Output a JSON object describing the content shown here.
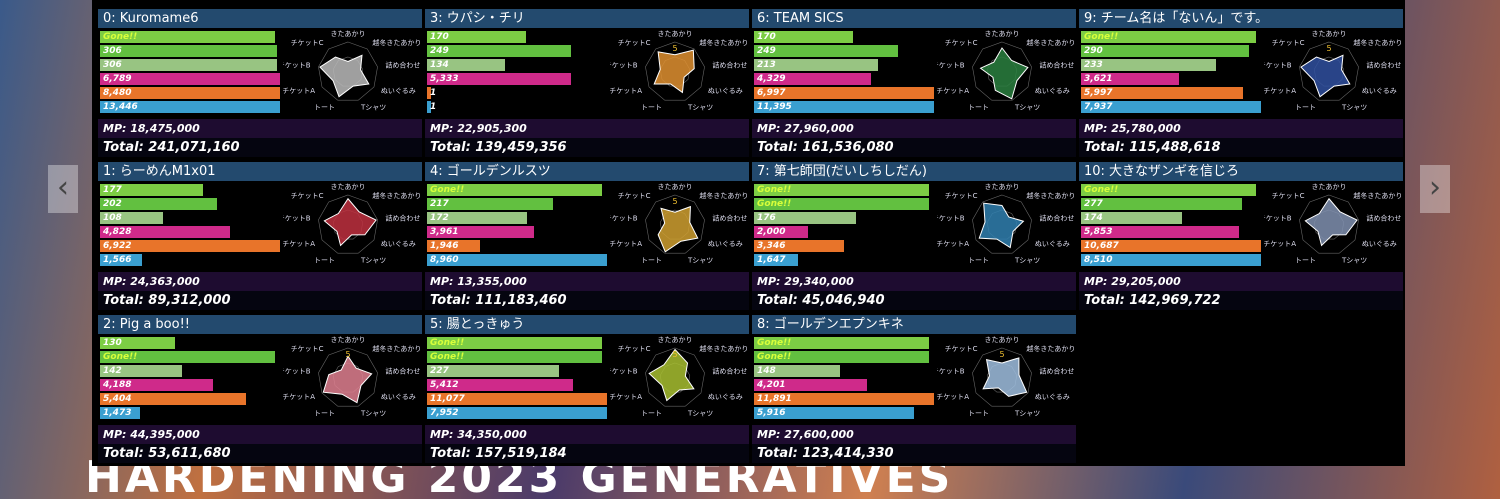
{
  "radar_axes": [
    "きたあかり",
    "越冬きたあかり",
    "詰め合わせ",
    "ぬいぐるみ",
    "Tシャツ",
    "トート",
    "チケットA",
    "チケットB",
    "チケットC"
  ],
  "footer": "HARDENING 2023 GENERATIVES",
  "teams": [
    {
      "title": "0: Kuromame6",
      "bars": [
        "Gone!!",
        "306",
        "306",
        "6,789",
        "8,480",
        "13,446"
      ],
      "mp": "MP: 18,475,000",
      "total": "Total: 241,071,160"
    },
    {
      "title": "1: らーめんM1x01",
      "bars": [
        "177",
        "202",
        "108",
        "4,828",
        "6,922",
        "1,566"
      ],
      "mp": "MP: 24,363,000",
      "total": "Total: 89,312,000"
    },
    {
      "title": "2: Pig a boo!!",
      "bars": [
        "130",
        "Gone!!",
        "142",
        "4,188",
        "5,404",
        "1,473"
      ],
      "mp": "MP: 44,395,000",
      "total": "Total: 53,611,680",
      "radar_mark": "5"
    },
    {
      "title": "3: ウパシ・チリ",
      "bars": [
        "170",
        "249",
        "134",
        "5,333",
        "1",
        "1"
      ],
      "mp": "MP: 22,905,300",
      "total": "Total: 139,459,356",
      "radar_mark": "5"
    },
    {
      "title": "4: ゴールデンルスツ",
      "bars": [
        "Gone!!",
        "217",
        "172",
        "3,961",
        "1,946",
        "8,960"
      ],
      "mp": "MP: 13,355,000",
      "total": "Total: 111,183,460",
      "radar_mark": "5"
    },
    {
      "title": "5: 腸とっきゅう",
      "bars": [
        "Gone!!",
        "Gone!!",
        "227",
        "5,412",
        "11,077",
        "7,952"
      ],
      "mp": "MP: 34,350,000",
      "total": "Total: 157,519,184",
      "radar_mark": "5"
    },
    {
      "title": "6: TEAM SICS",
      "bars": [
        "170",
        "249",
        "213",
        "4,329",
        "6,997",
        "11,395"
      ],
      "mp": "MP: 27,960,000",
      "total": "Total: 161,536,080"
    },
    {
      "title": "7: 第七師団(だいしちしだん)",
      "bars": [
        "Gone!!",
        "Gone!!",
        "176",
        "2,000",
        "3,346",
        "1,647"
      ],
      "mp": "MP: 29,340,000",
      "total": "Total: 45,046,940"
    },
    {
      "title": "8: ゴールデンエプンキネ",
      "bars": [
        "Gone!!",
        "Gone!!",
        "148",
        "4,201",
        "11,891",
        "5,916"
      ],
      "mp": "MP: 27,600,000",
      "total": "Total: 123,414,330",
      "radar_mark": "5"
    },
    {
      "title": "9: チーム名は「ないん」です。",
      "bars": [
        "Gone!!",
        "290",
        "233",
        "3,621",
        "5,997",
        "7,937"
      ],
      "mp": "MP: 25,780,000",
      "total": "Total: 115,488,618",
      "radar_mark": "5"
    },
    {
      "title": "10: 大きなザンギを信じろ",
      "bars": [
        "Gone!!",
        "277",
        "174",
        "5,853",
        "10,687",
        "8,510"
      ],
      "mp": "MP: 29,205,000",
      "total": "Total: 142,969,722"
    }
  ]
}
